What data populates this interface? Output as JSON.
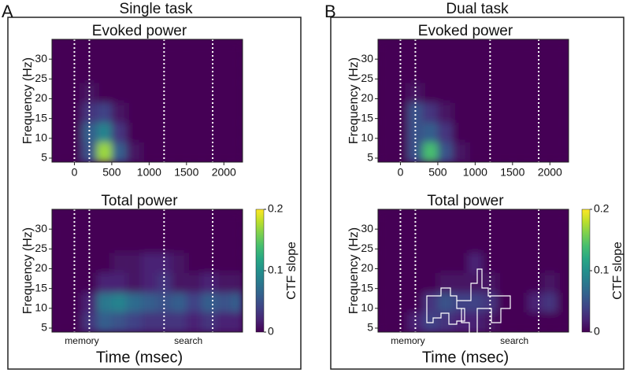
{
  "panels": [
    {
      "label": "A",
      "title": "Single task"
    },
    {
      "label": "B",
      "title": "Dual task"
    }
  ],
  "chart_data": [
    {
      "type": "heatmap",
      "title": "Evoked power",
      "ylabel": "Frequency (Hz)",
      "colormap": "viridis",
      "xlim": [
        -300,
        2250
      ],
      "ylim": [
        4,
        35
      ],
      "xticks": [
        0,
        500,
        1000,
        1500,
        2000
      ],
      "yticks": [
        5,
        10,
        15,
        20,
        25,
        30
      ],
      "vlines": [
        0,
        200,
        1200,
        1850
      ],
      "zlim": [
        0,
        0.2
      ],
      "x_bins": [
        -300,
        -100,
        100,
        300,
        500,
        700,
        900,
        1100,
        1300,
        1500,
        1700,
        1900,
        2100,
        2250
      ],
      "y_bins": [
        4,
        9,
        14,
        19,
        24,
        29,
        34
      ],
      "z": [
        [
          0,
          0,
          0.05,
          0.17,
          0.06,
          0.01,
          0,
          0,
          0,
          0,
          0,
          0,
          0
        ],
        [
          0,
          0,
          0.06,
          0.09,
          0.03,
          0,
          0,
          0,
          0,
          0,
          0,
          0,
          0
        ],
        [
          0,
          0,
          0.03,
          0.04,
          0.01,
          0,
          0,
          0,
          0,
          0,
          0,
          0,
          0
        ],
        [
          0,
          0,
          0.01,
          0,
          0,
          0,
          0,
          0,
          0,
          0,
          0,
          0,
          0
        ],
        [
          0,
          0,
          0,
          0,
          0,
          0,
          0,
          0,
          0,
          0,
          0,
          0,
          0
        ],
        [
          0,
          0,
          0,
          0,
          0,
          0,
          0,
          0,
          0,
          0,
          0,
          0,
          0
        ]
      ]
    },
    {
      "type": "heatmap",
      "title": "Total power",
      "ylabel": "Frequency (Hz)",
      "xlabel": "Time (msec)",
      "colormap": "viridis",
      "xlim": [
        -300,
        2250
      ],
      "ylim": [
        4,
        35
      ],
      "yticks": [
        5,
        10,
        15,
        20,
        25,
        30
      ],
      "vlines": [
        0,
        200,
        1200,
        1850
      ],
      "annotations": [
        "memory",
        "search"
      ],
      "zlim": [
        0,
        0.2
      ],
      "colorbar": {
        "label": "CTF slope",
        "ticks": [
          0,
          0.1,
          0.2
        ]
      },
      "x_bins": [
        -300,
        -100,
        100,
        300,
        500,
        700,
        900,
        1100,
        1300,
        1500,
        1700,
        1900,
        2100,
        2250
      ],
      "y_bins": [
        4,
        9,
        14,
        19,
        24,
        29,
        34
      ],
      "z": [
        [
          0,
          0,
          0.03,
          0.06,
          0.05,
          0.04,
          0.03,
          0.03,
          0.03,
          0.02,
          0.03,
          0.02,
          0.02
        ],
        [
          0,
          0,
          0.02,
          0.08,
          0.09,
          0.07,
          0.06,
          0.05,
          0.06,
          0.04,
          0.06,
          0.05,
          0.06
        ],
        [
          0,
          0,
          0,
          0.02,
          0.02,
          0.01,
          0.02,
          0.03,
          0.01,
          0.01,
          0.02,
          0.01,
          0.01
        ],
        [
          0,
          0,
          0,
          0,
          0.01,
          0.01,
          0.02,
          0.02,
          0.01,
          0,
          0,
          0,
          0
        ],
        [
          0,
          0,
          0,
          0,
          0,
          0,
          0,
          0,
          0,
          0,
          0,
          0,
          0
        ],
        [
          0,
          0,
          0,
          0,
          0,
          0,
          0,
          0,
          0,
          0,
          0,
          0,
          0
        ]
      ]
    },
    {
      "type": "heatmap",
      "title": "Evoked power",
      "ylabel": "Frequency (Hz)",
      "colormap": "viridis",
      "xlim": [
        -300,
        2250
      ],
      "ylim": [
        4,
        35
      ],
      "xticks": [
        0,
        500,
        1000,
        1500,
        2000
      ],
      "yticks": [
        5,
        10,
        15,
        20,
        25,
        30
      ],
      "vlines": [
        0,
        200,
        1200,
        1850
      ],
      "zlim": [
        0,
        0.2
      ],
      "x_bins": [
        -300,
        -100,
        100,
        300,
        500,
        700,
        900,
        1100,
        1300,
        1500,
        1700,
        1900,
        2100,
        2250
      ],
      "y_bins": [
        4,
        9,
        14,
        19,
        24,
        29,
        34
      ],
      "z": [
        [
          0,
          0,
          0.05,
          0.14,
          0.05,
          0.01,
          0,
          0,
          0,
          0,
          0,
          0,
          0
        ],
        [
          0,
          0,
          0.05,
          0.06,
          0.03,
          0,
          0,
          0,
          0,
          0,
          0,
          0,
          0
        ],
        [
          0,
          0,
          0.05,
          0.03,
          0.01,
          0,
          0,
          0,
          0,
          0,
          0,
          0,
          0
        ],
        [
          0,
          0,
          0.01,
          0,
          0,
          0,
          0,
          0,
          0,
          0,
          0,
          0,
          0
        ],
        [
          0,
          0,
          0,
          0,
          0,
          0,
          0,
          0,
          0,
          0,
          0,
          0,
          0
        ],
        [
          0,
          0,
          0,
          0,
          0,
          0,
          0,
          0,
          0,
          0,
          0,
          0,
          0
        ]
      ]
    },
    {
      "type": "heatmap",
      "title": "Total power",
      "ylabel": "Frequency (Hz)",
      "xlabel": "Time (msec)",
      "colormap": "viridis",
      "xlim": [
        -300,
        2250
      ],
      "ylim": [
        4,
        35
      ],
      "yticks": [
        5,
        10,
        15,
        20,
        25,
        30
      ],
      "vlines": [
        0,
        200,
        1200,
        1850
      ],
      "annotations": [
        "memory",
        "search"
      ],
      "zlim": [
        0,
        0.2
      ],
      "colorbar": {
        "label": "CTF slope",
        "ticks": [
          0,
          0.1,
          0.2
        ]
      },
      "x_bins": [
        -300,
        -100,
        100,
        300,
        500,
        700,
        900,
        1100,
        1300,
        1500,
        1700,
        1900,
        2100,
        2250
      ],
      "y_bins": [
        4,
        9,
        14,
        19,
        24,
        29,
        34
      ],
      "z": [
        [
          0,
          0,
          0.02,
          0.04,
          0.03,
          0.02,
          0.02,
          0.01,
          0,
          0,
          0,
          0,
          0
        ],
        [
          0,
          0,
          0,
          0.03,
          0.05,
          0.04,
          0.04,
          0.03,
          0,
          0,
          0.02,
          0.03,
          0
        ],
        [
          0,
          0,
          0,
          0,
          0.01,
          0.01,
          0.01,
          0.01,
          0,
          0,
          0,
          0.01,
          0
        ],
        [
          0,
          0,
          0,
          0,
          0,
          0,
          0.02,
          0,
          0,
          0,
          0,
          0,
          0
        ],
        [
          0,
          0,
          0,
          0,
          0,
          0,
          0,
          0,
          0,
          0,
          0,
          0,
          0
        ],
        [
          0,
          0,
          0,
          0,
          0,
          0,
          0,
          0,
          0,
          0,
          0,
          0,
          0
        ]
      ]
    }
  ]
}
